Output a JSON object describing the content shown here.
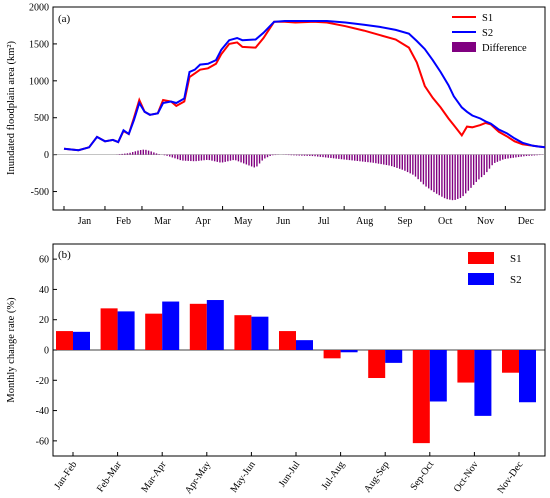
{
  "chart_data": [
    {
      "type": "line",
      "panel_label": "(a)",
      "ylabel": "Inundated floodplain area (km²)",
      "xlabel": "",
      "ylim": [
        -750,
        2000
      ],
      "yticks": [
        -500,
        0,
        500,
        1000,
        1500,
        2000
      ],
      "x_ticks": [
        "Jan",
        "Feb",
        "Mar",
        "Apr",
        "May",
        "Jun",
        "Jul",
        "Aug",
        "Sep",
        "Oct",
        "Nov",
        "Dec"
      ],
      "x_unit": "day of year",
      "legend_position": "top-right",
      "series": [
        {
          "name": "S1",
          "kind": "line",
          "color": "#ff0000",
          "x": [
            1,
            12,
            20,
            26,
            32,
            38,
            42,
            46,
            50,
            54,
            58,
            62,
            66,
            72,
            76,
            82,
            86,
            92,
            96,
            100,
            104,
            110,
            116,
            120,
            126,
            132,
            136,
            146,
            152,
            160,
            168,
            176,
            190,
            200,
            214,
            228,
            240,
            252,
            262,
            268,
            274,
            280,
            286,
            292,
            296,
            302,
            306,
            310,
            316,
            320,
            324,
            330,
            336,
            342,
            348,
            356,
            360,
            365
          ],
          "y": [
            80,
            60,
            100,
            240,
            180,
            200,
            170,
            320,
            280,
            500,
            740,
            580,
            540,
            560,
            740,
            720,
            660,
            720,
            1050,
            1100,
            1150,
            1170,
            1230,
            1360,
            1500,
            1520,
            1460,
            1450,
            1580,
            1800,
            1800,
            1790,
            1800,
            1790,
            1740,
            1680,
            1620,
            1560,
            1450,
            1250,
            930,
            770,
            640,
            490,
            400,
            260,
            380,
            370,
            400,
            430,
            410,
            310,
            250,
            180,
            140,
            120,
            110,
            100
          ]
        },
        {
          "name": "S2",
          "kind": "line",
          "color": "#0000ff",
          "x": [
            1,
            12,
            20,
            26,
            32,
            38,
            42,
            46,
            50,
            54,
            58,
            62,
            66,
            72,
            76,
            82,
            86,
            92,
            96,
            100,
            104,
            110,
            116,
            120,
            126,
            132,
            136,
            146,
            152,
            160,
            168,
            176,
            190,
            200,
            214,
            228,
            240,
            252,
            262,
            268,
            274,
            280,
            286,
            292,
            296,
            302,
            306,
            310,
            316,
            320,
            324,
            330,
            336,
            342,
            348,
            356,
            360,
            365
          ],
          "y": [
            80,
            60,
            100,
            240,
            180,
            200,
            170,
            330,
            280,
            470,
            700,
            580,
            540,
            560,
            700,
            720,
            700,
            760,
            1120,
            1150,
            1220,
            1230,
            1280,
            1420,
            1550,
            1580,
            1550,
            1560,
            1650,
            1800,
            1810,
            1810,
            1810,
            1810,
            1790,
            1760,
            1730,
            1690,
            1640,
            1540,
            1430,
            1280,
            1120,
            940,
            790,
            640,
            580,
            530,
            490,
            450,
            420,
            340,
            290,
            220,
            160,
            120,
            110,
            100
          ]
        },
        {
          "name": "Difference",
          "kind": "bar",
          "color": "#800080",
          "x": [
            1,
            20,
            40,
            50,
            58,
            62,
            66,
            72,
            80,
            90,
            100,
            110,
            120,
            130,
            140,
            146,
            152,
            158,
            165,
            175,
            190,
            205,
            220,
            235,
            248,
            258,
            266,
            274,
            282,
            290,
            296,
            302,
            308,
            314,
            320,
            326,
            334,
            342,
            350,
            358,
            365
          ],
          "y": [
            0,
            0,
            0,
            20,
            60,
            70,
            50,
            10,
            -20,
            -80,
            -90,
            -70,
            -110,
            -70,
            -140,
            -180,
            -60,
            -10,
            0,
            -10,
            -20,
            -50,
            -80,
            -110,
            -150,
            -210,
            -280,
            -420,
            -520,
            -600,
            -620,
            -580,
            -470,
            -350,
            -260,
            -120,
            -60,
            -40,
            -20,
            -10,
            0
          ]
        }
      ]
    },
    {
      "type": "bar",
      "panel_label": "(b)",
      "ylabel": "Monthly change rate (%)",
      "xlabel": "",
      "ylim": [
        -70,
        70
      ],
      "yticks": [
        -60,
        -40,
        -20,
        0,
        20,
        40,
        60
      ],
      "categories": [
        "Jan-Feb",
        "Feb-Mar",
        "Mar-Apr",
        "Apr-May",
        "May-Jun",
        "Jun-Jul",
        "Jul-Aug",
        "Aug-Sep",
        "Sep-Oct",
        "Oct-Nov",
        "Nov-Dec"
      ],
      "legend_position": "top-right",
      "series": [
        {
          "name": "S1",
          "color": "#ff0000",
          "values": [
            12.5,
            27.5,
            24,
            30.5,
            23,
            12.5,
            -5.5,
            -18.5,
            -61.5,
            -21.5,
            -15
          ]
        },
        {
          "name": "S2",
          "color": "#0000ff",
          "values": [
            12,
            25.5,
            32,
            33,
            22,
            6.5,
            -1.5,
            -8.5,
            -34,
            -43.5,
            -34.5
          ]
        }
      ]
    }
  ]
}
